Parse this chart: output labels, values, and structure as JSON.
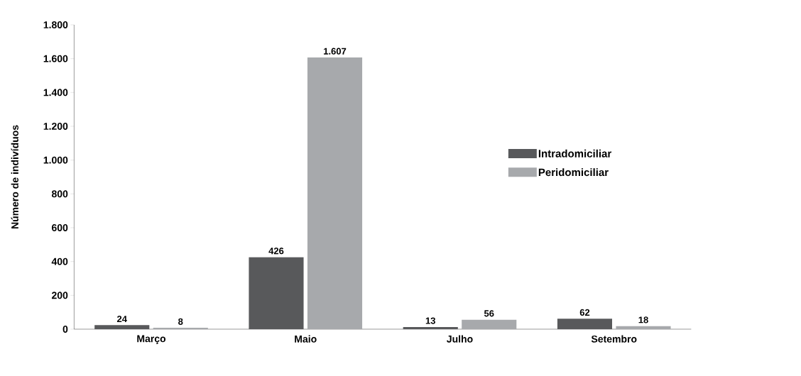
{
  "chart_data": {
    "type": "bar",
    "ylabel": "Número de indivíduos",
    "categories": [
      "Março",
      "Maio",
      "Julho",
      "Setembro"
    ],
    "series": [
      {
        "name": "Intradomiciliar",
        "color": "#58595b",
        "values": [
          24,
          426,
          13,
          62
        ],
        "value_labels": [
          "24",
          "426",
          "13",
          "62"
        ]
      },
      {
        "name": "Peridomiciliar",
        "color": "#a7a9ac",
        "values": [
          8,
          1607,
          56,
          18
        ],
        "value_labels": [
          "8",
          "1.607",
          "56",
          "18"
        ]
      }
    ],
    "ylim": [
      0,
      1800
    ],
    "yticks": [
      0,
      200,
      400,
      600,
      800,
      {
        "value": 1000,
        "label": "1.000"
      },
      {
        "value": 1200,
        "label": "1.200"
      },
      {
        "value": 1400,
        "label": "1.400"
      },
      {
        "value": 1600,
        "label": "1.600"
      },
      {
        "value": 1800,
        "label": "1.800"
      }
    ],
    "grid": false,
    "legend": "right"
  }
}
